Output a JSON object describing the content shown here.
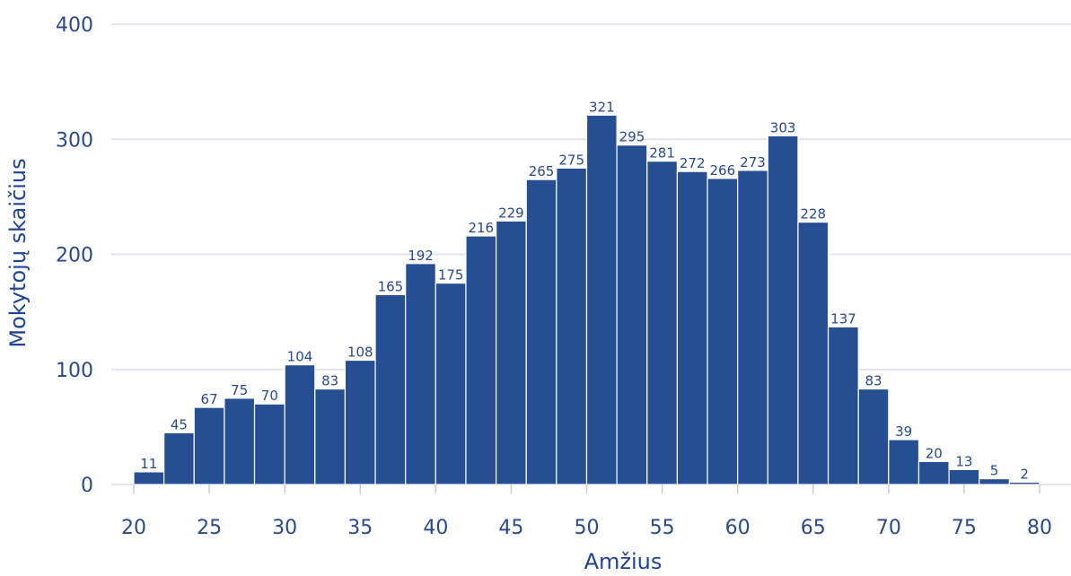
{
  "chart_data": {
    "type": "bar",
    "title": "",
    "xlabel": "Amžius",
    "ylabel": "Mokytojų skaičius",
    "ylim": [
      0,
      400
    ],
    "y_ticks": [
      "0",
      "100",
      "200",
      "300",
      "400"
    ],
    "x_ticks": [
      "20",
      "25",
      "30",
      "35",
      "40",
      "45",
      "50",
      "55",
      "60",
      "65",
      "70",
      "75",
      "80"
    ],
    "bin_width": 2,
    "x": [
      21,
      23,
      25,
      27,
      29,
      31,
      33,
      35,
      37,
      39,
      41,
      43,
      45,
      47,
      49,
      51,
      53,
      55,
      57,
      59,
      61,
      63,
      65,
      67,
      69,
      71,
      73,
      75,
      77,
      79
    ],
    "values": [
      11,
      45,
      67,
      75,
      70,
      104,
      83,
      108,
      165,
      192,
      175,
      216,
      229,
      265,
      275,
      321,
      295,
      281,
      272,
      266,
      273,
      303,
      228,
      137,
      83,
      39,
      20,
      13,
      5,
      2
    ],
    "labels": [
      "11",
      "45",
      "67",
      "75",
      "70",
      "104",
      "83",
      "108",
      "165",
      "192",
      "175",
      "216",
      "229",
      "265",
      "275",
      "321",
      "295",
      "281",
      "272",
      "266",
      "273",
      "303",
      "228",
      "137",
      "83",
      "39",
      "20",
      "13",
      "5",
      "2"
    ],
    "bar_color": "#264f93",
    "grid": true
  }
}
